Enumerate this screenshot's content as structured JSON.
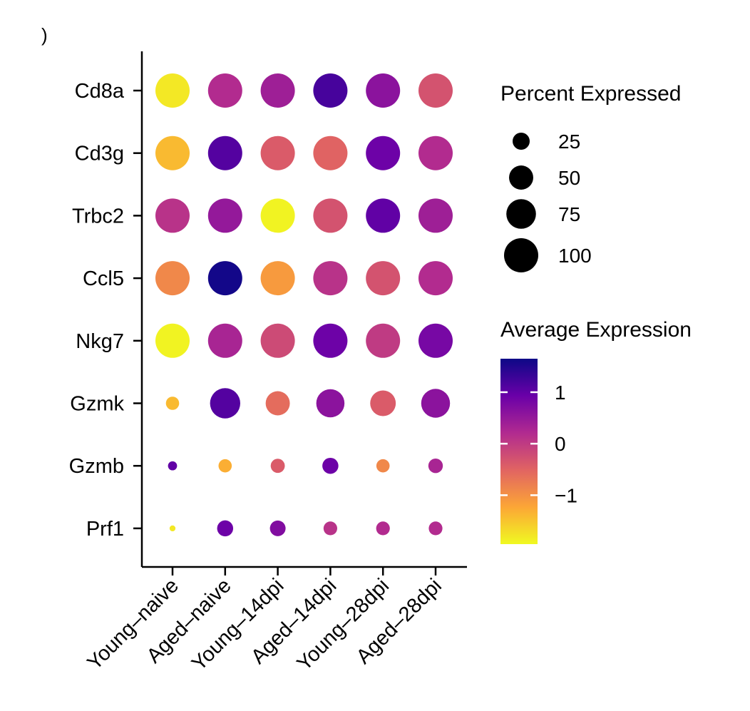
{
  "chart_data": {
    "type": "dotplot",
    "panel_mark": ")",
    "genes": [
      "Cd8a",
      "Cd3g",
      "Trbc2",
      "Ccl5",
      "Nkg7",
      "Gzmk",
      "Gzmb",
      "Prf1"
    ],
    "groups": [
      "Young–naive",
      "Aged–naive",
      "Young–14dpi",
      "Aged–14dpi",
      "Young–28dpi",
      "Aged–28dpi"
    ],
    "avg_expression": [
      [
        -1.8,
        0.2,
        0.4,
        1.2,
        0.6,
        -0.3
      ],
      [
        -1.4,
        1.1,
        -0.4,
        -0.5,
        0.9,
        0.2
      ],
      [
        0.1,
        0.5,
        -1.9,
        -0.3,
        1.0,
        0.4
      ],
      [
        -0.9,
        1.6,
        -1.1,
        0.1,
        -0.3,
        0.2
      ],
      [
        -1.9,
        0.3,
        -0.2,
        0.9,
        0.0,
        0.8
      ],
      [
        -1.4,
        1.1,
        -0.6,
        0.6,
        -0.4,
        0.6
      ],
      [
        1.0,
        -1.3,
        -0.4,
        0.9,
        -0.9,
        0.3
      ],
      [
        -1.8,
        0.9,
        0.7,
        0.1,
        0.2,
        0.2
      ]
    ],
    "pct_expressed": [
      [
        100,
        100,
        100,
        100,
        100,
        100
      ],
      [
        100,
        100,
        100,
        100,
        100,
        100
      ],
      [
        100,
        100,
        100,
        100,
        100,
        100
      ],
      [
        100,
        100,
        100,
        100,
        100,
        100
      ],
      [
        100,
        100,
        100,
        100,
        100,
        100
      ],
      [
        15,
        78,
        50,
        68,
        56,
        71
      ],
      [
        7,
        15,
        17,
        22,
        15,
        18
      ],
      [
        3,
        22,
        21,
        16,
        16,
        16
      ]
    ],
    "size_legend": {
      "title": "Percent Expressed",
      "breaks": [
        25,
        50,
        75,
        100
      ],
      "labels": [
        "25",
        "50",
        "75",
        "100"
      ]
    },
    "color_legend": {
      "title": "Average Expression",
      "range": [
        -1.95,
        1.65
      ],
      "breaks": [
        -1,
        0,
        1
      ],
      "labels": [
        "−1",
        "0",
        "1"
      ],
      "colors": [
        "#f0f921",
        "#fca636",
        "#e16462",
        "#b12a90",
        "#6a00a8",
        "#0d0887"
      ]
    },
    "size_range_pct": [
      0,
      100
    ]
  }
}
